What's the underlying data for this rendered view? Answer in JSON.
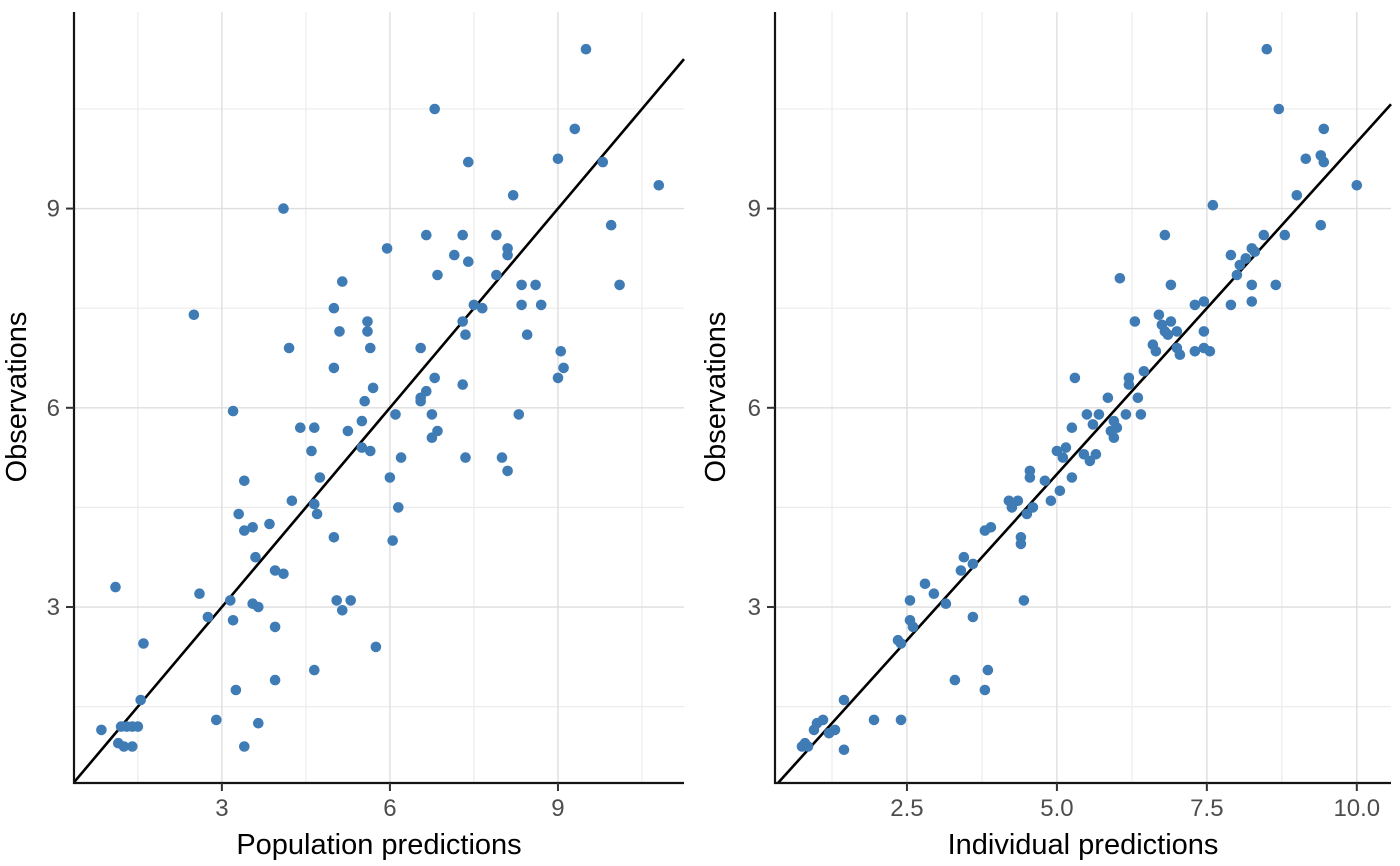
{
  "figure": {
    "background": "#ffffff",
    "panel_background": "#ffffff",
    "grid_major_color": "#dedede",
    "grid_minor_color": "#ececec",
    "axis_line_color": "#141414",
    "tick_mark_color": "#333333",
    "tick_label_color": "#4d4d4d",
    "axis_title_color": "#000000",
    "point_color": "#3f7cb5",
    "identity_line_color": "#000000"
  },
  "chart_data": [
    {
      "type": "scatter",
      "title": "",
      "xlabel": "Population predictions",
      "ylabel": "Observations",
      "xlim": [
        0.36,
        11.25
      ],
      "ylim": [
        0.35,
        11.96
      ],
      "x_major": [
        3,
        6,
        9
      ],
      "x_major_labels": [
        "3",
        "6",
        "9"
      ],
      "x_minor": [
        1.5,
        4.5,
        7.5,
        10.5
      ],
      "y_major": [
        3,
        6,
        9
      ],
      "y_major_labels": [
        "3",
        "6",
        "9"
      ],
      "y_minor": [
        1.5,
        4.5,
        7.5,
        10.5
      ],
      "grid": true,
      "legend_position": "none",
      "identity_line": {
        "slope": 1,
        "intercept": 0
      },
      "points": [
        [
          4.1,
          9.0
        ],
        [
          5.15,
          7.9
        ],
        [
          5.0,
          7.5
        ],
        [
          2.5,
          7.4
        ],
        [
          5.6,
          7.3
        ],
        [
          5.1,
          7.15
        ],
        [
          5.6,
          7.15
        ],
        [
          4.2,
          6.9
        ],
        [
          5.65,
          6.9
        ],
        [
          5.0,
          6.6
        ],
        [
          5.7,
          6.3
        ],
        [
          5.55,
          6.1
        ],
        [
          9.5,
          11.4
        ],
        [
          6.8,
          10.5
        ],
        [
          9.3,
          10.2
        ],
        [
          9.0,
          9.75
        ],
        [
          9.8,
          9.7
        ],
        [
          7.4,
          9.7
        ],
        [
          10.8,
          9.35
        ],
        [
          8.2,
          9.2
        ],
        [
          9.95,
          8.75
        ],
        [
          6.65,
          8.6
        ],
        [
          7.3,
          8.6
        ],
        [
          7.9,
          8.6
        ],
        [
          5.95,
          8.4
        ],
        [
          8.1,
          8.4
        ],
        [
          8.1,
          8.3
        ],
        [
          7.15,
          8.3
        ],
        [
          7.4,
          8.2
        ],
        [
          6.85,
          8.0
        ],
        [
          7.9,
          8.0
        ],
        [
          8.35,
          7.85
        ],
        [
          8.6,
          7.85
        ],
        [
          10.1,
          7.85
        ],
        [
          8.35,
          7.55
        ],
        [
          8.7,
          7.55
        ],
        [
          7.5,
          7.55
        ],
        [
          7.65,
          7.5
        ],
        [
          7.3,
          7.3
        ],
        [
          7.35,
          7.1
        ],
        [
          8.45,
          7.1
        ],
        [
          6.55,
          6.9
        ],
        [
          9.05,
          6.85
        ],
        [
          9.1,
          6.6
        ],
        [
          9.0,
          6.45
        ],
        [
          6.8,
          6.45
        ],
        [
          7.3,
          6.35
        ],
        [
          6.65,
          6.25
        ],
        [
          6.55,
          6.15
        ],
        [
          3.2,
          5.95
        ],
        [
          5.5,
          5.8
        ],
        [
          4.4,
          5.7
        ],
        [
          4.65,
          5.7
        ],
        [
          5.25,
          5.65
        ],
        [
          5.5,
          5.4
        ],
        [
          4.6,
          5.35
        ],
        [
          5.65,
          5.35
        ],
        [
          4.75,
          4.95
        ],
        [
          3.4,
          4.9
        ],
        [
          4.25,
          4.6
        ],
        [
          4.65,
          4.55
        ],
        [
          4.7,
          4.4
        ],
        [
          3.3,
          4.4
        ],
        [
          3.85,
          4.25
        ],
        [
          3.55,
          4.2
        ],
        [
          3.4,
          4.15
        ],
        [
          5.0,
          4.05
        ],
        [
          3.6,
          3.75
        ],
        [
          3.95,
          3.55
        ],
        [
          4.1,
          3.5
        ],
        [
          1.1,
          3.3
        ],
        [
          2.6,
          3.2
        ],
        [
          3.15,
          3.1
        ],
        [
          5.05,
          3.1
        ],
        [
          5.3,
          3.1
        ],
        [
          3.55,
          3.05
        ],
        [
          3.65,
          3.0
        ],
        [
          5.15,
          2.95
        ],
        [
          2.75,
          2.85
        ],
        [
          3.2,
          2.8
        ],
        [
          3.95,
          2.7
        ],
        [
          1.6,
          2.45
        ],
        [
          4.65,
          2.05
        ],
        [
          3.95,
          1.9
        ],
        [
          3.25,
          1.75
        ],
        [
          1.55,
          1.6
        ],
        [
          2.9,
          1.3
        ],
        [
          3.65,
          1.25
        ],
        [
          1.2,
          1.2
        ],
        [
          1.3,
          1.2
        ],
        [
          1.4,
          1.2
        ],
        [
          1.5,
          1.2
        ],
        [
          0.85,
          1.15
        ],
        [
          1.15,
          0.95
        ],
        [
          1.25,
          0.9
        ],
        [
          1.4,
          0.9
        ],
        [
          3.4,
          0.9
        ],
        [
          6.55,
          6.1
        ],
        [
          6.1,
          5.9
        ],
        [
          6.75,
          5.9
        ],
        [
          8.3,
          5.9
        ],
        [
          6.85,
          5.65
        ],
        [
          6.75,
          5.55
        ],
        [
          6.2,
          5.25
        ],
        [
          7.35,
          5.25
        ],
        [
          8.0,
          5.25
        ],
        [
          8.1,
          5.05
        ],
        [
          6.0,
          4.95
        ],
        [
          6.15,
          4.5
        ],
        [
          6.05,
          4.0
        ],
        [
          5.75,
          2.4
        ]
      ]
    },
    {
      "type": "scatter",
      "title": "",
      "xlabel": "Individual predictions",
      "ylabel": "Observations",
      "xlim": [
        0.3,
        10.57
      ],
      "ylim": [
        0.35,
        11.96
      ],
      "x_major": [
        2.5,
        5.0,
        7.5,
        10.0
      ],
      "x_major_labels": [
        "2.5",
        "5.0",
        "7.5",
        "10.0"
      ],
      "x_minor": [
        1.25,
        3.75,
        6.25,
        8.75
      ],
      "y_major": [
        3,
        6,
        9
      ],
      "y_major_labels": [
        "3",
        "6",
        "9"
      ],
      "y_minor": [
        1.5,
        4.5,
        7.5,
        10.5
      ],
      "grid": true,
      "legend_position": "none",
      "identity_line": {
        "slope": 1,
        "intercept": 0
      },
      "points": [
        [
          8.5,
          11.4
        ],
        [
          8.7,
          10.5
        ],
        [
          9.45,
          10.2
        ],
        [
          9.4,
          9.8
        ],
        [
          9.15,
          9.75
        ],
        [
          9.45,
          9.7
        ],
        [
          10.0,
          9.35
        ],
        [
          9.0,
          9.2
        ],
        [
          7.6,
          9.05
        ],
        [
          9.4,
          8.75
        ],
        [
          6.8,
          8.6
        ],
        [
          8.45,
          8.6
        ],
        [
          8.8,
          8.6
        ],
        [
          8.25,
          8.4
        ],
        [
          8.3,
          8.35
        ],
        [
          7.9,
          8.3
        ],
        [
          8.15,
          8.25
        ],
        [
          8.05,
          8.15
        ],
        [
          8.0,
          8.0
        ],
        [
          6.05,
          7.95
        ],
        [
          6.9,
          7.85
        ],
        [
          8.25,
          7.85
        ],
        [
          8.65,
          7.85
        ],
        [
          8.25,
          7.6
        ],
        [
          7.45,
          7.6
        ],
        [
          7.9,
          7.55
        ],
        [
          7.3,
          7.55
        ],
        [
          6.7,
          7.4
        ],
        [
          6.3,
          7.3
        ],
        [
          6.9,
          7.3
        ],
        [
          6.75,
          7.25
        ],
        [
          6.8,
          7.15
        ],
        [
          7.0,
          7.15
        ],
        [
          7.45,
          7.15
        ],
        [
          6.85,
          7.1
        ],
        [
          6.6,
          6.95
        ],
        [
          7.0,
          6.9
        ],
        [
          7.45,
          6.9
        ],
        [
          6.65,
          6.85
        ],
        [
          7.3,
          6.85
        ],
        [
          7.55,
          6.85
        ],
        [
          7.05,
          6.8
        ],
        [
          6.45,
          6.55
        ],
        [
          5.3,
          6.45
        ],
        [
          6.2,
          6.45
        ],
        [
          6.2,
          6.35
        ],
        [
          5.85,
          6.15
        ],
        [
          6.35,
          6.15
        ],
        [
          5.5,
          5.9
        ],
        [
          5.7,
          5.9
        ],
        [
          6.15,
          5.9
        ],
        [
          6.4,
          5.9
        ],
        [
          5.95,
          5.8
        ],
        [
          5.6,
          5.75
        ],
        [
          6.0,
          5.7
        ],
        [
          5.9,
          5.65
        ],
        [
          5.95,
          5.55
        ],
        [
          5.45,
          5.3
        ],
        [
          5.65,
          5.3
        ],
        [
          5.55,
          5.2
        ],
        [
          5.25,
          5.7
        ],
        [
          5.15,
          5.4
        ],
        [
          5.0,
          5.35
        ],
        [
          5.1,
          5.25
        ],
        [
          4.55,
          5.05
        ],
        [
          5.25,
          4.95
        ],
        [
          4.55,
          4.95
        ],
        [
          4.8,
          4.9
        ],
        [
          5.05,
          4.75
        ],
        [
          4.9,
          4.6
        ],
        [
          4.2,
          4.6
        ],
        [
          4.35,
          4.6
        ],
        [
          4.25,
          4.5
        ],
        [
          4.6,
          4.5
        ],
        [
          4.5,
          4.4
        ],
        [
          3.9,
          4.2
        ],
        [
          3.8,
          4.15
        ],
        [
          4.4,
          4.05
        ],
        [
          4.4,
          3.95
        ],
        [
          3.45,
          3.75
        ],
        [
          3.6,
          3.65
        ],
        [
          3.4,
          3.55
        ],
        [
          2.8,
          3.35
        ],
        [
          2.95,
          3.2
        ],
        [
          2.55,
          3.1
        ],
        [
          4.45,
          3.1
        ],
        [
          3.15,
          3.05
        ],
        [
          3.6,
          2.85
        ],
        [
          2.55,
          2.8
        ],
        [
          2.6,
          2.7
        ],
        [
          2.35,
          2.5
        ],
        [
          2.4,
          2.45
        ],
        [
          3.85,
          2.05
        ],
        [
          3.3,
          1.9
        ],
        [
          3.8,
          1.75
        ],
        [
          1.45,
          1.6
        ],
        [
          1.95,
          1.3
        ],
        [
          2.4,
          1.3
        ],
        [
          1.1,
          1.3
        ],
        [
          1.0,
          1.25
        ],
        [
          0.95,
          1.15
        ],
        [
          1.3,
          1.15
        ],
        [
          1.2,
          1.1
        ],
        [
          0.8,
          0.95
        ],
        [
          0.75,
          0.9
        ],
        [
          0.85,
          0.9
        ],
        [
          1.45,
          0.85
        ]
      ]
    }
  ]
}
